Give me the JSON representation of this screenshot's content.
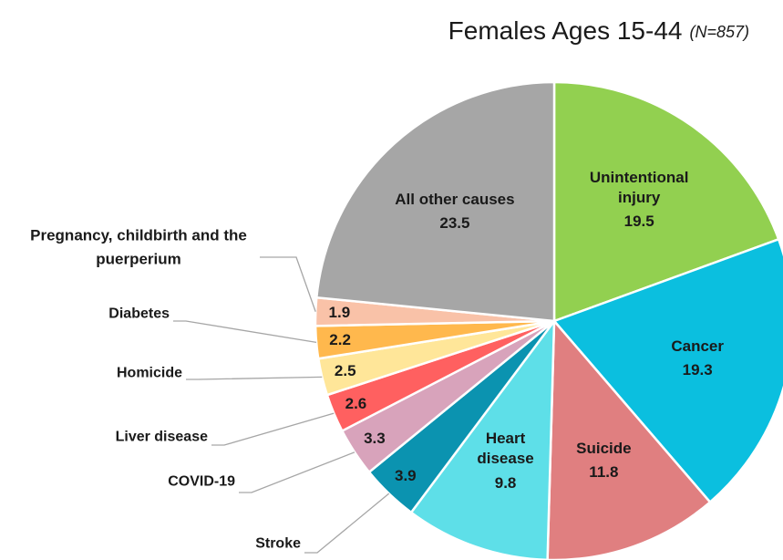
{
  "chart_data": {
    "type": "pie",
    "title": "Females Ages 15-44",
    "subtitle": "(N=857)",
    "categories": [
      "Unintentional injury",
      "Cancer",
      "Suicide",
      "Heart disease",
      "Stroke",
      "COVID-19",
      "Liver disease",
      "Homicide",
      "Diabetes",
      "Pregnancy, childbirth and the puerperium",
      "All other causes"
    ],
    "values": [
      19.5,
      19.3,
      11.8,
      9.8,
      3.9,
      3.3,
      2.6,
      2.5,
      2.2,
      1.9,
      23.5
    ],
    "colors": [
      "#92d050",
      "#0bbfdf",
      "#e07f80",
      "#5edfe8",
      "#0b93b0",
      "#d8a3bb",
      "#ff6060",
      "#ffe699",
      "#ffb84d",
      "#f9c2a8",
      "#a6a6a6"
    ]
  }
}
